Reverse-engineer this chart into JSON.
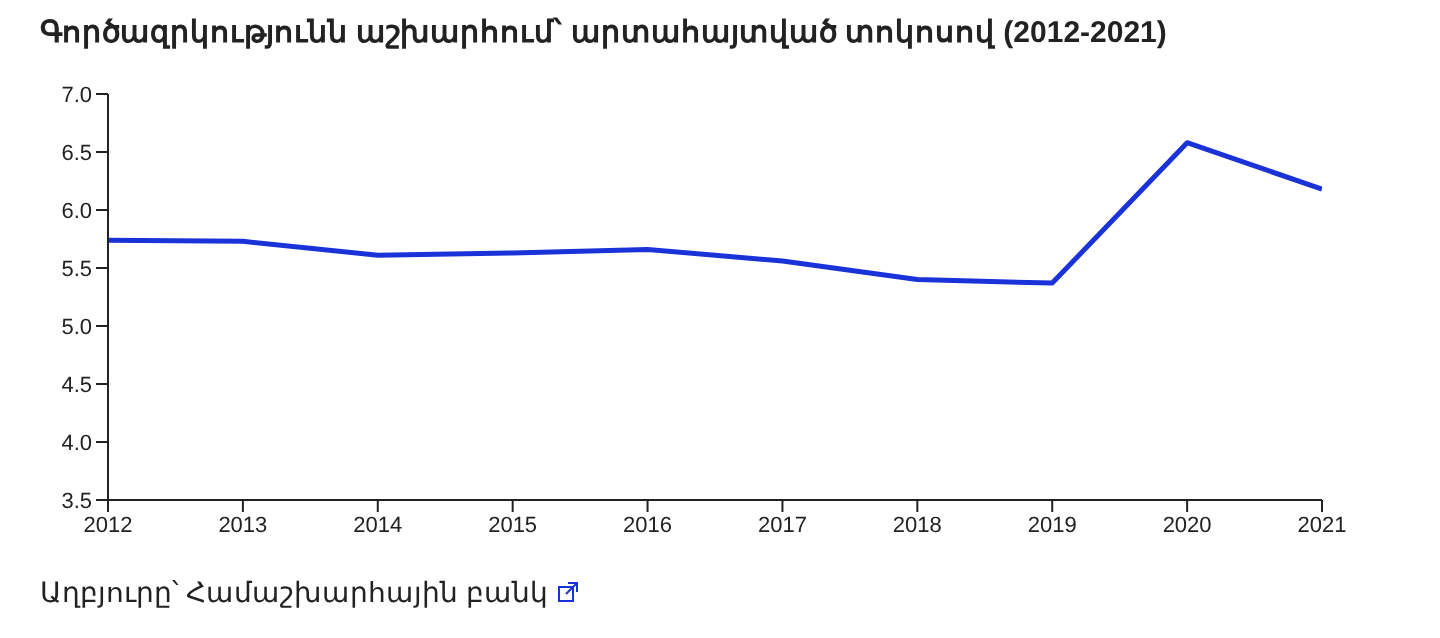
{
  "chart_data": {
    "type": "line",
    "title": "Գործազրկությունն աշխարհում՝ արտահայտված տոկոսով (2012-2021)",
    "x": [
      2012,
      2013,
      2014,
      2015,
      2016,
      2017,
      2018,
      2019,
      2020,
      2021
    ],
    "series": [
      {
        "color": "#1a33d9",
        "values": [
          5.74,
          5.73,
          5.61,
          5.63,
          5.66,
          5.56,
          5.4,
          5.37,
          6.58,
          6.18
        ]
      }
    ],
    "xlim": [
      2012,
      2021
    ],
    "xticks": [
      2012,
      2013,
      2014,
      2015,
      2016,
      2017,
      2018,
      2019,
      2020,
      2021
    ],
    "ylim": [
      3.5,
      7.0
    ],
    "yticks": [
      {
        "value": 3.5,
        "label": "3.5"
      },
      {
        "value": 4,
        "label": "4.0"
      },
      {
        "value": 4.5,
        "label": "4.5"
      },
      {
        "value": 5,
        "label": "5.0"
      },
      {
        "value": 5.5,
        "label": "5.5"
      },
      {
        "value": 6,
        "label": "6.0"
      },
      {
        "value": 6.5,
        "label": "6.5"
      },
      {
        "value": 7,
        "label": "7.0"
      }
    ],
    "grid": false,
    "legend": false,
    "marker": "none",
    "line_style": "solid",
    "annotations": [
      "Աղբյուրը՝ Համաշխարհային բանկ"
    ]
  }
}
